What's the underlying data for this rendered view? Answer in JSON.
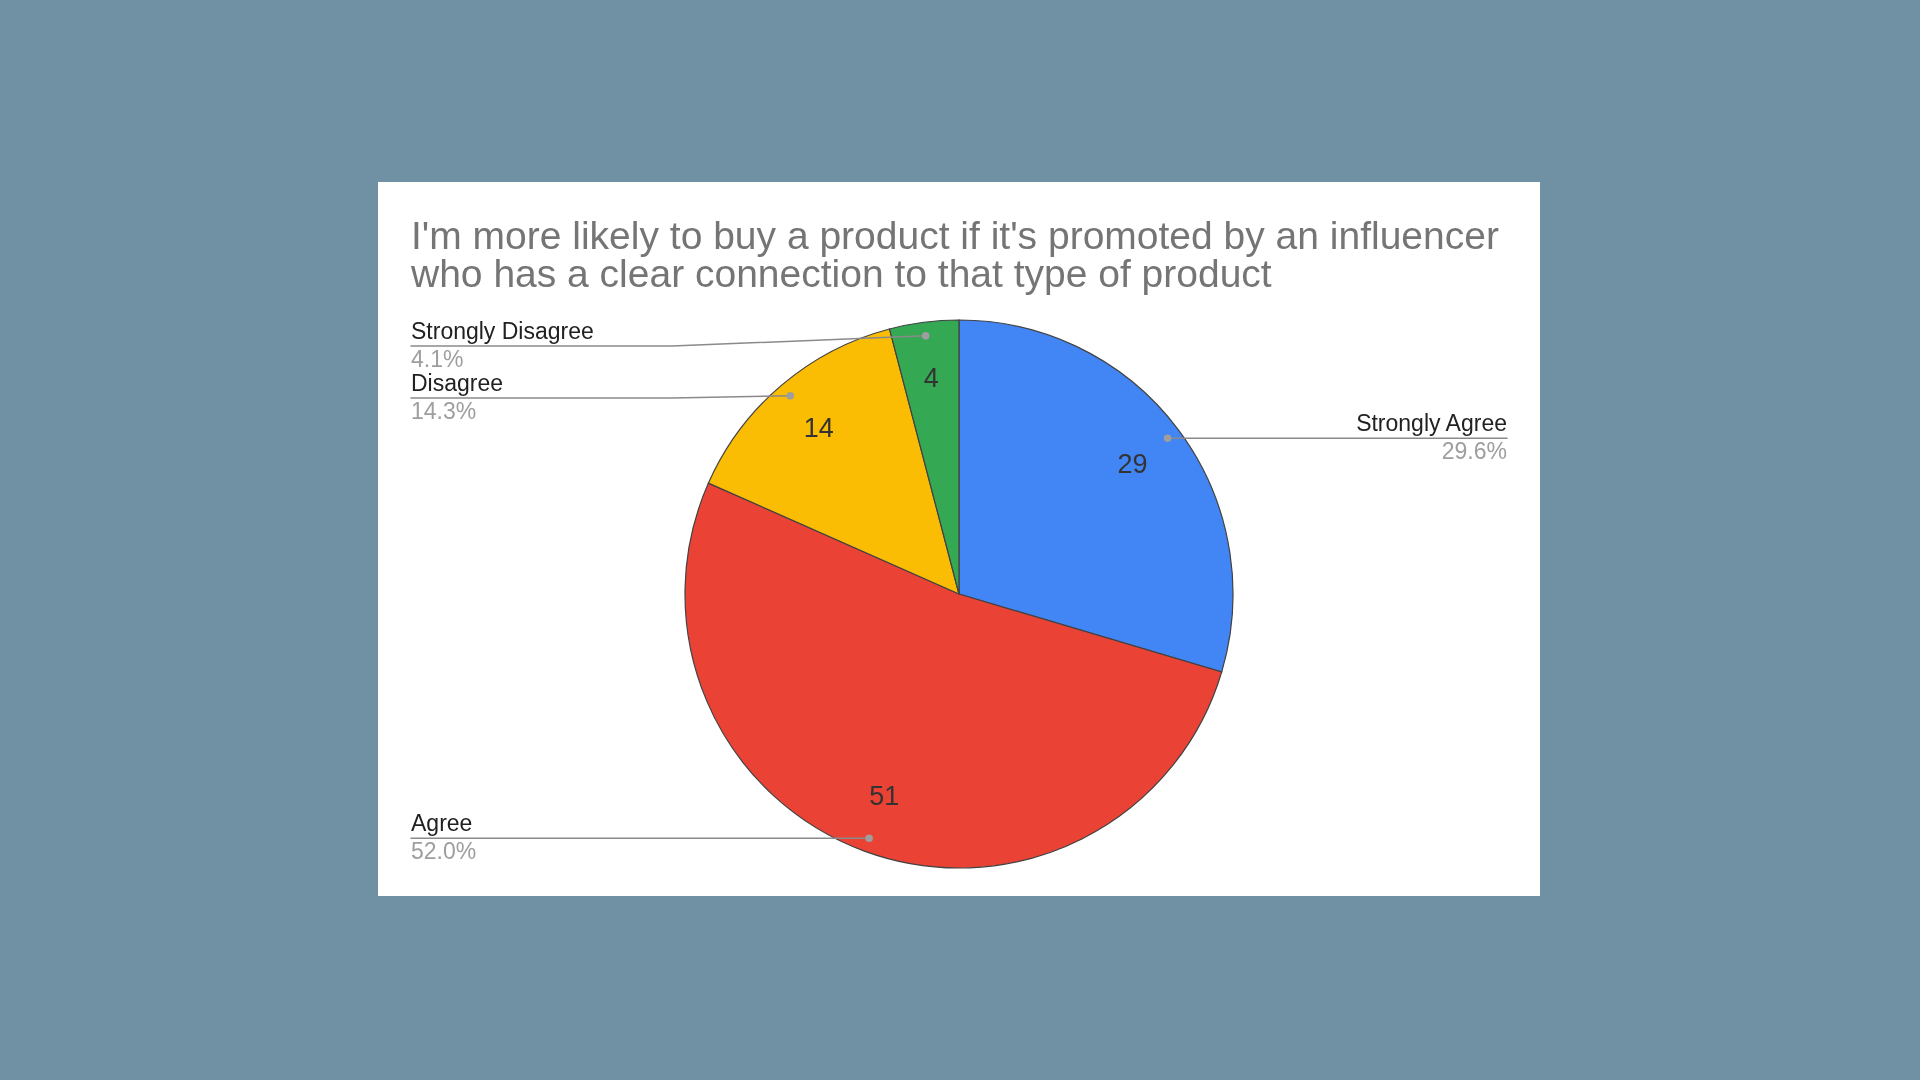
{
  "chart_data": {
    "type": "pie",
    "title": "I'm more likely to buy a product if it's promoted by an influencer who has a clear connection to that type of product",
    "categories": [
      "Strongly Agree",
      "Agree",
      "Disagree",
      "Strongly Disagree"
    ],
    "values": [
      29,
      51,
      14,
      4
    ],
    "colors": [
      "#4285f4",
      "#ea4335",
      "#fbbc04",
      "#34a853"
    ],
    "data_labels": true,
    "annotations": [
      "29.6%",
      "52.0%",
      "14.3%",
      "4.1%"
    ]
  }
}
